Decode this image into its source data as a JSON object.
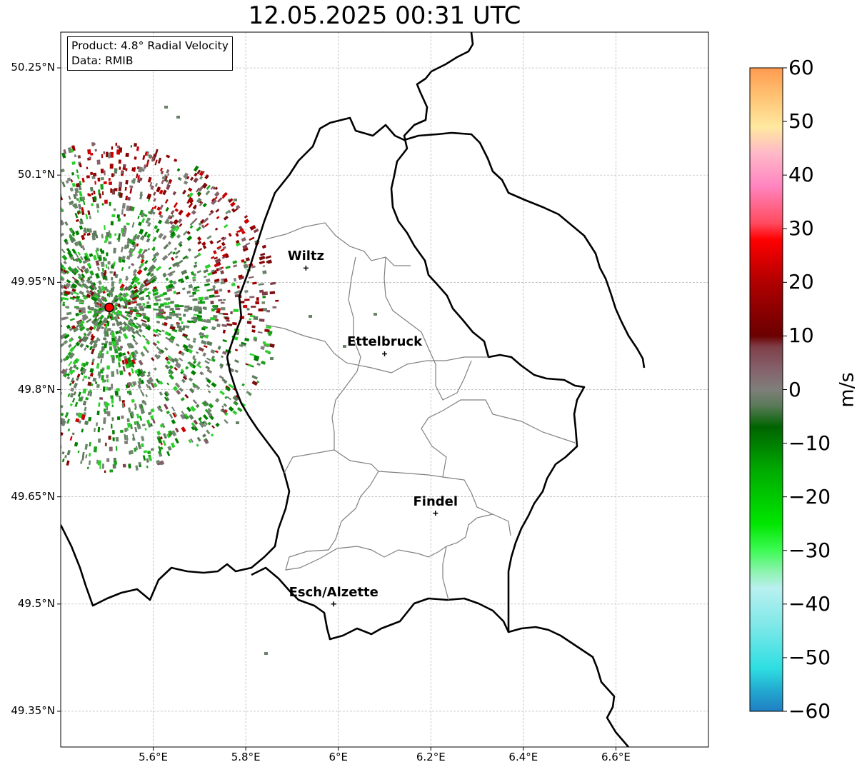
{
  "title": "12.05.2025 00:31 UTC",
  "info": {
    "product": "Product: 4.8° Radial Velocity",
    "data": "Data: RMIB"
  },
  "lat_ticks": [
    {
      "value": 50.25,
      "label": "50.25°N"
    },
    {
      "value": 50.1,
      "label": "50.1°N"
    },
    {
      "value": 49.95,
      "label": "49.95°N"
    },
    {
      "value": 49.8,
      "label": "49.8°N"
    },
    {
      "value": 49.65,
      "label": "49.65°N"
    },
    {
      "value": 49.5,
      "label": "49.5°N"
    },
    {
      "value": 49.35,
      "label": "49.35°N"
    }
  ],
  "lon_ticks": [
    {
      "value": 5.6,
      "label": "5.6°E"
    },
    {
      "value": 5.8,
      "label": "5.8°E"
    },
    {
      "value": 6.0,
      "label": "6°E"
    },
    {
      "value": 6.2,
      "label": "6.2°E"
    },
    {
      "value": 6.4,
      "label": "6.4°E"
    },
    {
      "value": 6.6,
      "label": "6.6°E"
    }
  ],
  "extent": {
    "lon_min": 5.4,
    "lon_max": 6.8,
    "lat_min": 49.3,
    "lat_max": 50.3
  },
  "cities": [
    {
      "name": "Wiltz",
      "lon": 5.93,
      "lat": 49.97
    },
    {
      "name": "Ettelbruck",
      "lon": 6.1,
      "lat": 49.85
    },
    {
      "name": "Findel",
      "lon": 6.21,
      "lat": 49.627
    },
    {
      "name": "Esch/Alzette",
      "lon": 5.99,
      "lat": 49.5
    }
  ],
  "radar_site": {
    "lon": 5.505,
    "lat": 49.915
  },
  "colorbar": {
    "unit": "m/s",
    "min": -60,
    "max": 60,
    "ticks": [
      {
        "value": 60,
        "label": "60"
      },
      {
        "value": 50,
        "label": "50"
      },
      {
        "value": 40,
        "label": "40"
      },
      {
        "value": 30,
        "label": "30"
      },
      {
        "value": 20,
        "label": "20"
      },
      {
        "value": 10,
        "label": "10"
      },
      {
        "value": 0,
        "label": "0"
      },
      {
        "value": -10,
        "label": "−10"
      },
      {
        "value": -20,
        "label": "−20"
      },
      {
        "value": -30,
        "label": "−30"
      },
      {
        "value": -40,
        "label": "−40"
      },
      {
        "value": -50,
        "label": "−50"
      },
      {
        "value": -60,
        "label": "−60"
      }
    ],
    "stops": [
      {
        "value": -60,
        "color": "#1f7fc2"
      },
      {
        "value": -56,
        "color": "#23aad0"
      },
      {
        "value": -52,
        "color": "#2edee2"
      },
      {
        "value": -44,
        "color": "#7fe8e8"
      },
      {
        "value": -37,
        "color": "#b9f0f0"
      },
      {
        "value": -34,
        "color": "#8ef3b0"
      },
      {
        "value": -30,
        "color": "#3dfa55"
      },
      {
        "value": -25,
        "color": "#00e600"
      },
      {
        "value": -15,
        "color": "#00aa00"
      },
      {
        "value": -7,
        "color": "#006400"
      },
      {
        "value": -3,
        "color": "#5a7a58"
      },
      {
        "value": 0,
        "color": "#7f7f7a"
      },
      {
        "value": 4,
        "color": "#85606a"
      },
      {
        "value": 8,
        "color": "#7f3f48"
      },
      {
        "value": 10,
        "color": "#6b0000"
      },
      {
        "value": 20,
        "color": "#b00000"
      },
      {
        "value": 28,
        "color": "#ff0000"
      },
      {
        "value": 31,
        "color": "#ff4a5e"
      },
      {
        "value": 38,
        "color": "#ff85c0"
      },
      {
        "value": 44,
        "color": "#ffb8c8"
      },
      {
        "value": 49,
        "color": "#ffe9a0"
      },
      {
        "value": 55,
        "color": "#ffc070"
      },
      {
        "value": 60,
        "color": "#ff9a50"
      }
    ]
  },
  "colors": {
    "grid": "#b0b0b0",
    "border": "#000000",
    "cantons": "#808080",
    "radar_site": "#ff0000"
  }
}
